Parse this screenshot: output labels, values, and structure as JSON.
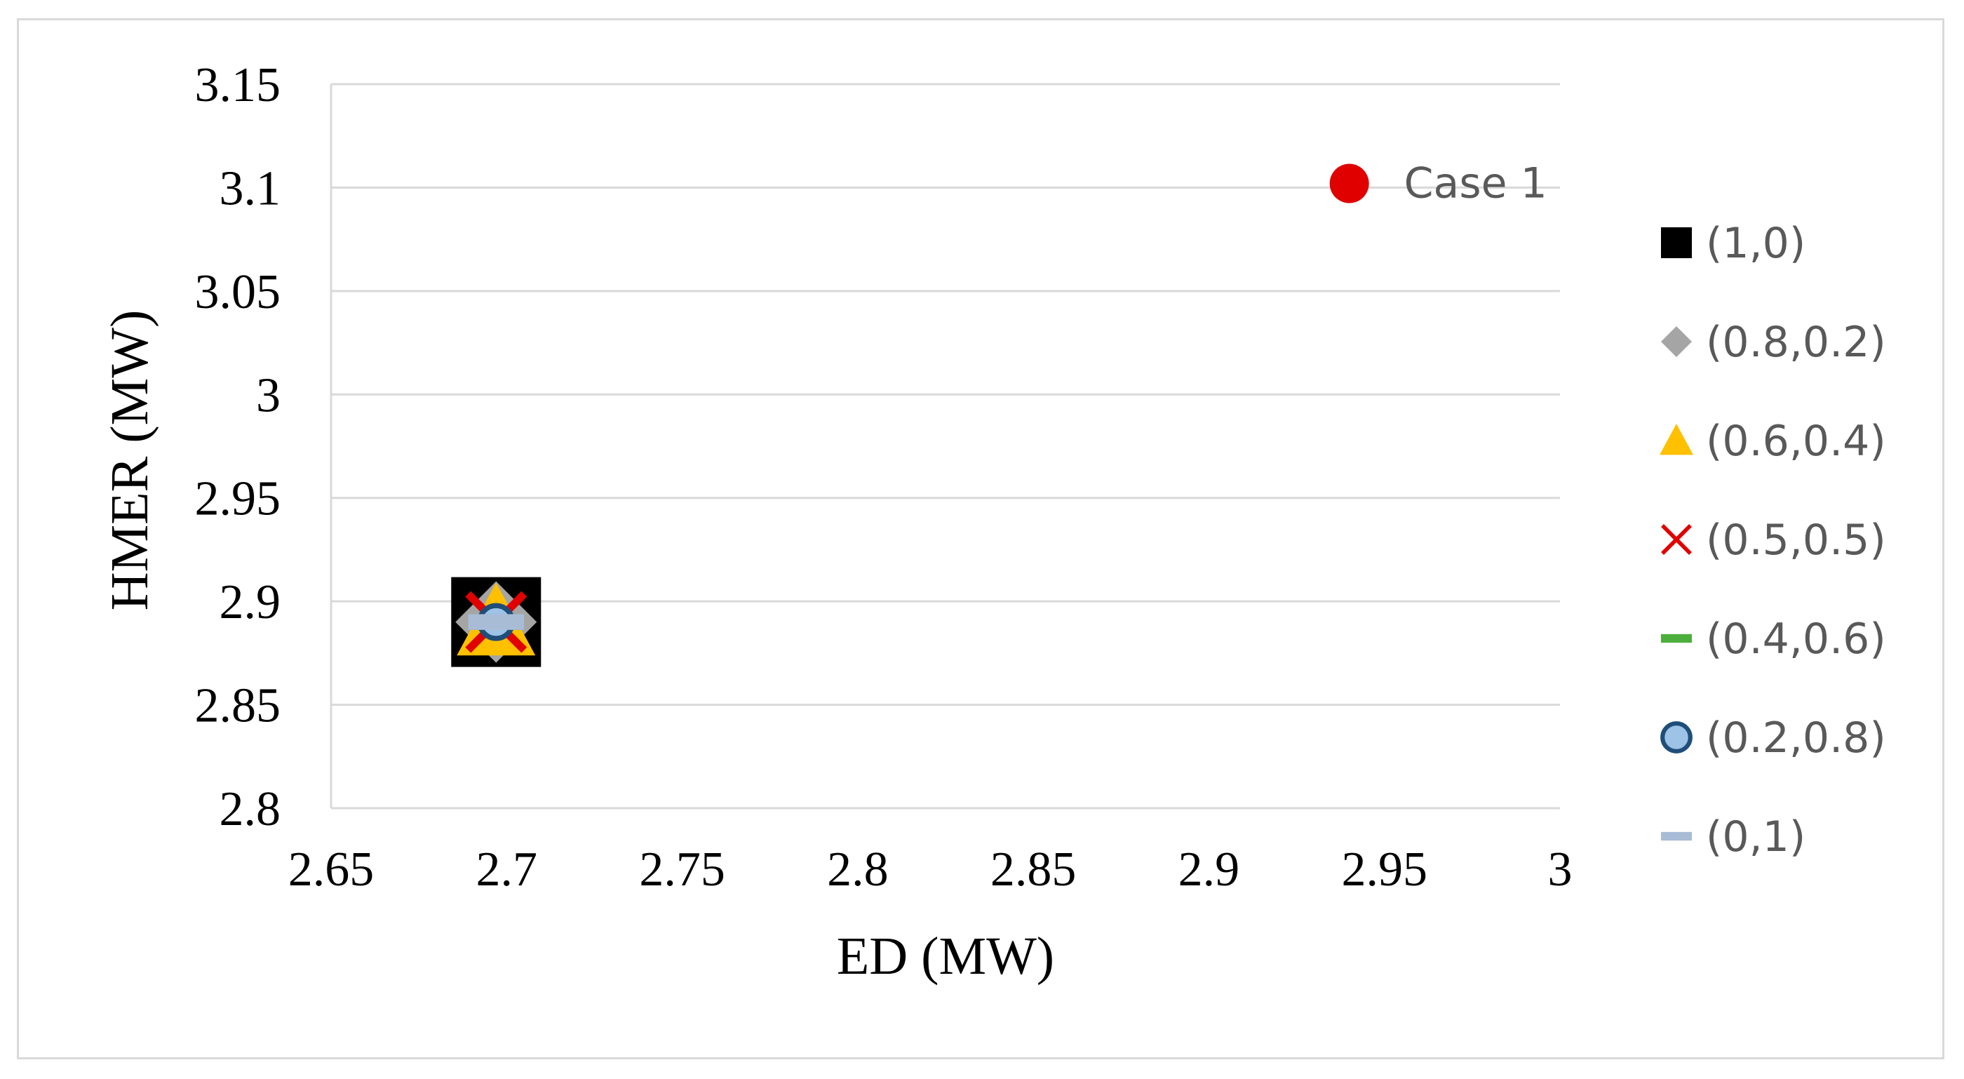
{
  "chart_data": {
    "type": "scatter",
    "title": "",
    "xlabel": "ED (MW)",
    "ylabel": "HMER (MW)",
    "xlim": [
      2.65,
      3.0
    ],
    "ylim": [
      2.8,
      3.15
    ],
    "x_ticks": [
      "2.65",
      "2.7",
      "2.75",
      "2.8",
      "2.85",
      "2.9",
      "2.95",
      "3"
    ],
    "y_ticks": [
      "3.15",
      "3.1",
      "3.05",
      "3",
      "2.95",
      "2.9",
      "2.85",
      "2.8"
    ],
    "grid": "horizontal",
    "legend_position": "right",
    "series": [
      {
        "name": "(1,0)",
        "marker": "square",
        "color": "#000000",
        "x": 2.697,
        "y": 2.89
      },
      {
        "name": "(0.8,0.2)",
        "marker": "diamond",
        "color": "#a5a5a5",
        "x": 2.697,
        "y": 2.89
      },
      {
        "name": "(0.6,0.4)",
        "marker": "triangle",
        "color": "#ffc000",
        "x": 2.697,
        "y": 2.89
      },
      {
        "name": "(0.5,0.5)",
        "marker": "x",
        "color": "#e00000",
        "x": 2.697,
        "y": 2.89
      },
      {
        "name": "(0.4,0.6)",
        "marker": "dash",
        "color": "#4cae3c",
        "x": 2.697,
        "y": 2.89
      },
      {
        "name": "(0.2,0.8)",
        "marker": "circle-outline",
        "color": "#9dc3e6",
        "edge_color": "#1f4e79",
        "x": 2.697,
        "y": 2.89
      },
      {
        "name": "(0,1)",
        "marker": "dash",
        "color": "#a9bcd6",
        "x": 2.697,
        "y": 2.89
      }
    ],
    "annotations": [
      {
        "text": "Case 1",
        "x": 2.94,
        "y": 3.102,
        "marker": "circle",
        "color": "#e00000"
      }
    ]
  }
}
